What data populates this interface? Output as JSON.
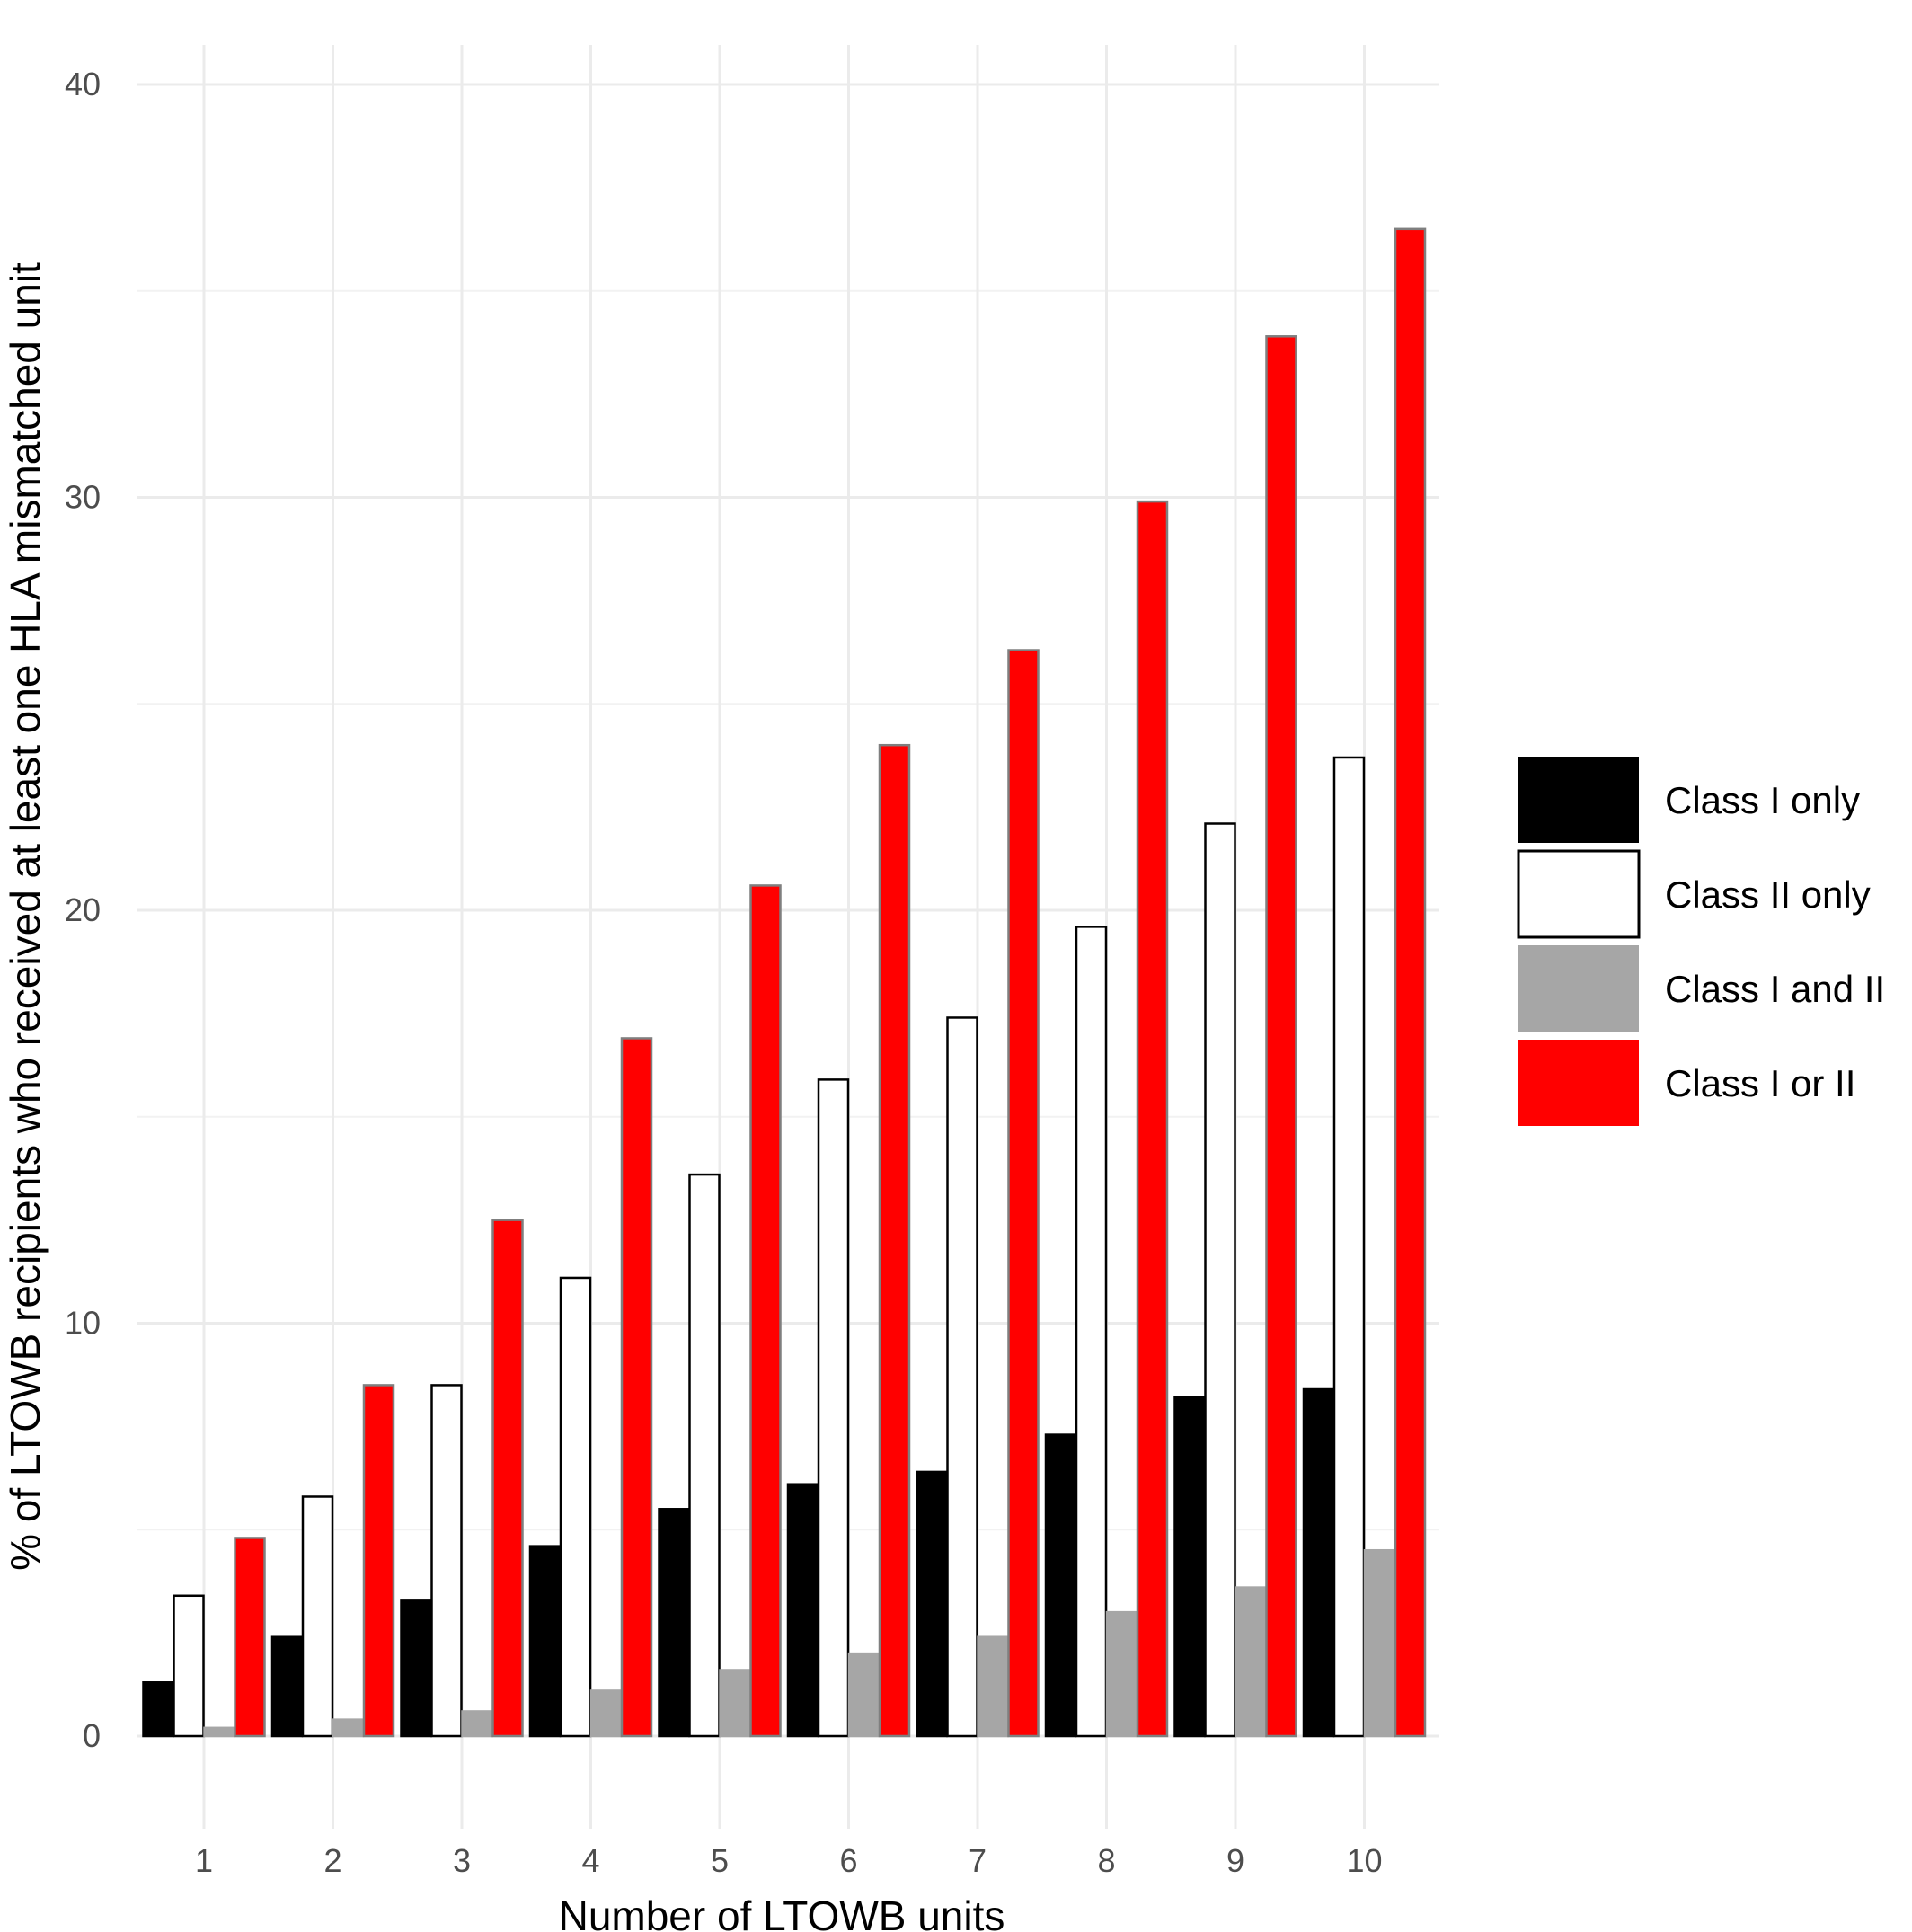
{
  "chart_data": {
    "type": "bar",
    "title": "",
    "xlabel": "Number of LTOWB units",
    "ylabel": "% of LTOWB recipients who received at least one HLA mismatched unit",
    "categories": [
      "1",
      "2",
      "3",
      "4",
      "5",
      "6",
      "7",
      "8",
      "9",
      "10"
    ],
    "ylim": [
      0,
      40
    ],
    "yticks": [
      0,
      10,
      20,
      30,
      40
    ],
    "grid": true,
    "legend_position": "right",
    "series": [
      {
        "name": "Class I only",
        "color": "#000000",
        "stroke": "#000000",
        "values": [
          1.3,
          2.4,
          3.3,
          4.6,
          5.5,
          6.1,
          6.4,
          7.3,
          8.2,
          8.4
        ]
      },
      {
        "name": "Class II only",
        "color": "#ffffff",
        "stroke": "#000000",
        "values": [
          3.4,
          5.8,
          8.5,
          11.1,
          13.6,
          15.9,
          17.4,
          19.6,
          22.1,
          23.7
        ]
      },
      {
        "name": "Class I and II",
        "color": "#a6a6a6",
        "stroke": "#a6a6a6",
        "values": [
          0.2,
          0.4,
          0.6,
          1.1,
          1.6,
          2.0,
          2.4,
          3.0,
          3.6,
          4.5
        ]
      },
      {
        "name": "Class I or II",
        "color": "#ff0000",
        "stroke": "#7f7f7f",
        "values": [
          4.8,
          8.5,
          12.5,
          16.9,
          20.6,
          24.0,
          26.3,
          29.9,
          33.9,
          36.5
        ]
      }
    ]
  }
}
